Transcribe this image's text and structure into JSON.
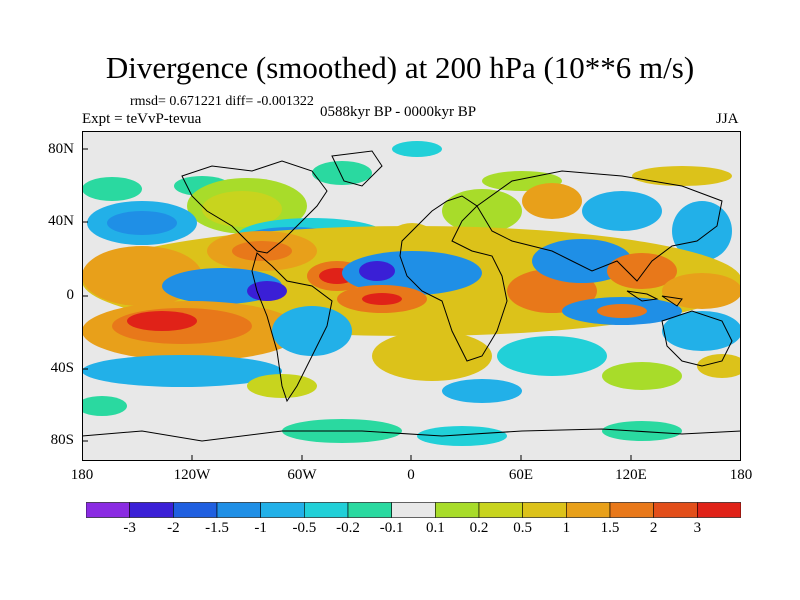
{
  "title": "Divergence (smoothed) at 200 hPa (10**6 m/s)",
  "stats": "rmsd= 0.671221 diff= -0.001322",
  "experiment": "Expt = teVvP-tevua",
  "period": "0588kyr BP - 0000kyr BP",
  "season": "JJA",
  "map": {
    "lat_ticks": [
      "80N",
      "40N",
      "0",
      "40S",
      "80S"
    ],
    "lon_ticks": [
      "180",
      "120W",
      "60W",
      "0",
      "60E",
      "120E",
      "180"
    ]
  },
  "colorbar": {
    "colors": [
      "#8a2be2",
      "#3a1fd6",
      "#1f5fe0",
      "#1f8fe6",
      "#22b0e8",
      "#21d0d8",
      "#2ad9a0",
      "#e8e8e8",
      "#a8dc2a",
      "#c8d41e",
      "#dcc21a",
      "#e8a01a",
      "#e8781a",
      "#e24e1a",
      "#e02218"
    ],
    "labels": [
      "-3",
      "-2",
      "-1.5",
      "-1",
      "-0.5",
      "-0.2",
      "-0.1",
      "0.1",
      "0.2",
      "0.5",
      "1",
      "1.5",
      "2",
      "3"
    ]
  }
}
